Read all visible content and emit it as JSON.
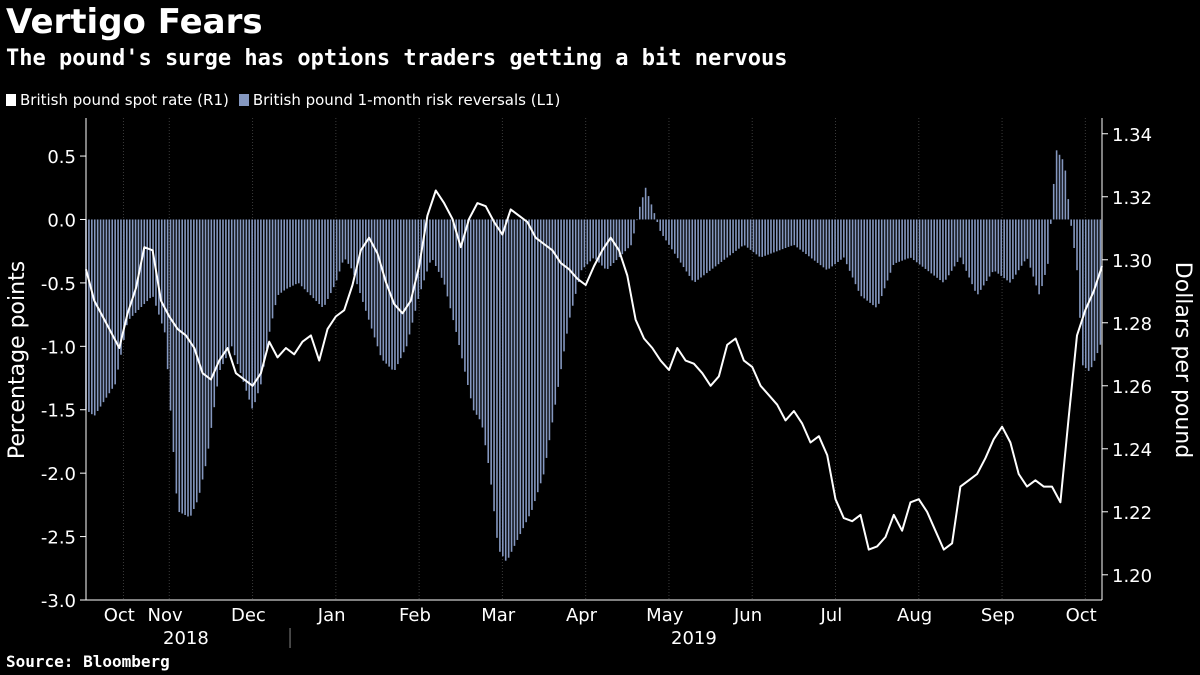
{
  "chart_data": {
    "type": "bar+line",
    "title": "Vertigo Fears",
    "subtitle": "The pound's surge has options traders getting a bit nervous",
    "source": "Source: Bloomberg",
    "colors": {
      "bars": "#8497bf",
      "line": "#ffffff",
      "background": "#000000",
      "grid": "#3a3a3a"
    },
    "left_axis": {
      "label": "Percentage points",
      "ylim": [
        -3.0,
        0.8
      ],
      "ticks": [
        0.5,
        0.0,
        -0.5,
        -1.0,
        -1.5,
        -2.0,
        -2.5,
        -3.0
      ],
      "tick_labels": [
        "0.5",
        "0.0",
        "-0.5",
        "-1.0",
        "-1.5",
        "-2.0",
        "-2.5",
        "-3.0"
      ]
    },
    "right_axis": {
      "label": "Dollars per pound",
      "ylim": [
        1.192,
        1.345
      ],
      "ticks": [
        1.34,
        1.32,
        1.3,
        1.28,
        1.26,
        1.24,
        1.22,
        1.2
      ],
      "tick_labels": [
        "1.34",
        "1.32",
        "1.30",
        "1.28",
        "1.26",
        "1.24",
        "1.22",
        "1.20"
      ]
    },
    "x_range_months": [
      0,
      12.2
    ],
    "month_labels": [
      {
        "label": "Oct",
        "pos": 0.4
      },
      {
        "label": "Nov",
        "pos": 0.95
      },
      {
        "label": "Dec",
        "pos": 1.95
      },
      {
        "label": "Jan",
        "pos": 2.95
      },
      {
        "label": "Feb",
        "pos": 3.95
      },
      {
        "label": "Mar",
        "pos": 4.95
      },
      {
        "label": "Apr",
        "pos": 5.95
      },
      {
        "label": "May",
        "pos": 6.95
      },
      {
        "label": "Jun",
        "pos": 7.95
      },
      {
        "label": "Jul",
        "pos": 8.95
      },
      {
        "label": "Aug",
        "pos": 9.95
      },
      {
        "label": "Sep",
        "pos": 10.95
      },
      {
        "label": "Oct",
        "pos": 11.95
      }
    ],
    "year_labels": [
      {
        "label": "2018",
        "pos": 1.2
      },
      {
        "label": "2019",
        "pos": 7.3
      }
    ],
    "year_divider_pos": 2.45,
    "legend": [
      {
        "label": "British pound spot rate (R1)",
        "color": "#ffffff"
      },
      {
        "label": "British pound 1-month risk reversals (L1)",
        "color": "#8497bf"
      }
    ],
    "series": [
      {
        "name": "British pound 1-month risk reversals (L1)",
        "axis": "left",
        "x": [
          0.0,
          0.1,
          0.2,
          0.35,
          0.5,
          0.65,
          0.8,
          0.95,
          1.1,
          1.25,
          1.35,
          1.45,
          1.6,
          1.75,
          1.9,
          2.0,
          2.1,
          2.2,
          2.3,
          2.4,
          2.55,
          2.7,
          2.85,
          3.0,
          3.1,
          3.2,
          3.3,
          3.4,
          3.55,
          3.7,
          3.85,
          4.0,
          4.15,
          4.3,
          4.45,
          4.55,
          4.65,
          4.75,
          4.85,
          4.95,
          5.05,
          5.2,
          5.35,
          5.5,
          5.65,
          5.8,
          5.95,
          6.1,
          6.25,
          6.4,
          6.55,
          6.65,
          6.72,
          6.8,
          6.9,
          7.1,
          7.3,
          7.5,
          7.7,
          7.9,
          8.1,
          8.3,
          8.5,
          8.7,
          8.9,
          9.1,
          9.3,
          9.5,
          9.7,
          9.9,
          10.1,
          10.3,
          10.5,
          10.7,
          10.9,
          11.1,
          11.3,
          11.45,
          11.55,
          11.65,
          11.75,
          11.82,
          11.9,
          11.97,
          12.05,
          12.12,
          12.2
        ],
        "values": [
          -1.5,
          -1.55,
          -1.45,
          -1.3,
          -0.8,
          -0.7,
          -0.6,
          -0.9,
          -2.3,
          -2.35,
          -2.2,
          -1.9,
          -1.2,
          -1.0,
          -1.3,
          -1.5,
          -1.3,
          -0.9,
          -0.6,
          -0.55,
          -0.5,
          -0.6,
          -0.7,
          -0.5,
          -0.3,
          -0.4,
          -0.6,
          -0.8,
          -1.1,
          -1.2,
          -1.0,
          -0.6,
          -0.3,
          -0.5,
          -0.9,
          -1.2,
          -1.5,
          -1.6,
          -2.0,
          -2.6,
          -2.7,
          -2.5,
          -2.3,
          -2.0,
          -1.4,
          -0.8,
          -0.4,
          -0.3,
          -0.4,
          -0.3,
          -0.2,
          0.1,
          0.25,
          0.1,
          -0.1,
          -0.3,
          -0.5,
          -0.4,
          -0.3,
          -0.2,
          -0.3,
          -0.25,
          -0.2,
          -0.3,
          -0.4,
          -0.3,
          -0.6,
          -0.7,
          -0.35,
          -0.3,
          -0.4,
          -0.5,
          -0.3,
          -0.6,
          -0.4,
          -0.5,
          -0.3,
          -0.6,
          -0.35,
          0.55,
          0.45,
          0.0,
          -0.4,
          -1.15,
          -1.2,
          -1.1,
          -0.95
        ]
      },
      {
        "name": "British pound spot rate (R1)",
        "axis": "right",
        "x": [
          0.0,
          0.1,
          0.2,
          0.3,
          0.4,
          0.5,
          0.6,
          0.7,
          0.8,
          0.9,
          1.0,
          1.1,
          1.2,
          1.3,
          1.4,
          1.5,
          1.6,
          1.7,
          1.8,
          1.9,
          2.0,
          2.1,
          2.2,
          2.3,
          2.4,
          2.5,
          2.6,
          2.7,
          2.8,
          2.9,
          3.0,
          3.1,
          3.2,
          3.3,
          3.4,
          3.5,
          3.6,
          3.7,
          3.8,
          3.9,
          4.0,
          4.1,
          4.2,
          4.3,
          4.4,
          4.5,
          4.6,
          4.7,
          4.8,
          4.9,
          5.0,
          5.1,
          5.2,
          5.3,
          5.4,
          5.5,
          5.6,
          5.7,
          5.8,
          5.9,
          6.0,
          6.1,
          6.2,
          6.3,
          6.4,
          6.5,
          6.6,
          6.7,
          6.8,
          6.9,
          7.0,
          7.1,
          7.2,
          7.3,
          7.4,
          7.5,
          7.6,
          7.7,
          7.8,
          7.9,
          8.0,
          8.1,
          8.2,
          8.3,
          8.4,
          8.5,
          8.6,
          8.7,
          8.8,
          8.9,
          9.0,
          9.1,
          9.2,
          9.3,
          9.4,
          9.5,
          9.6,
          9.7,
          9.8,
          9.9,
          10.0,
          10.1,
          10.2,
          10.3,
          10.4,
          10.5,
          10.6,
          10.7,
          10.8,
          10.9,
          11.0,
          11.1,
          11.2,
          11.3,
          11.4,
          11.5,
          11.6,
          11.7,
          11.8,
          11.9,
          12.0,
          12.1,
          12.2
        ],
        "values": [
          1.297,
          1.287,
          1.282,
          1.277,
          1.272,
          1.283,
          1.291,
          1.304,
          1.303,
          1.287,
          1.282,
          1.278,
          1.276,
          1.272,
          1.264,
          1.262,
          1.268,
          1.272,
          1.264,
          1.262,
          1.26,
          1.264,
          1.274,
          1.269,
          1.272,
          1.27,
          1.274,
          1.276,
          1.268,
          1.278,
          1.282,
          1.284,
          1.292,
          1.303,
          1.307,
          1.302,
          1.293,
          1.286,
          1.283,
          1.287,
          1.298,
          1.314,
          1.322,
          1.318,
          1.313,
          1.304,
          1.313,
          1.318,
          1.317,
          1.312,
          1.308,
          1.316,
          1.314,
          1.312,
          1.307,
          1.305,
          1.303,
          1.299,
          1.297,
          1.294,
          1.292,
          1.298,
          1.303,
          1.307,
          1.303,
          1.295,
          1.281,
          1.275,
          1.272,
          1.268,
          1.265,
          1.272,
          1.268,
          1.267,
          1.264,
          1.26,
          1.263,
          1.273,
          1.275,
          1.268,
          1.266,
          1.26,
          1.257,
          1.254,
          1.249,
          1.252,
          1.248,
          1.242,
          1.244,
          1.238,
          1.224,
          1.218,
          1.217,
          1.219,
          1.208,
          1.209,
          1.212,
          1.219,
          1.214,
          1.223,
          1.224,
          1.22,
          1.214,
          1.208,
          1.21,
          1.228,
          1.23,
          1.232,
          1.237,
          1.243,
          1.247,
          1.242,
          1.232,
          1.228,
          1.23,
          1.228,
          1.228,
          1.223,
          1.25,
          1.276,
          1.284,
          1.29,
          1.298
        ]
      }
    ]
  }
}
